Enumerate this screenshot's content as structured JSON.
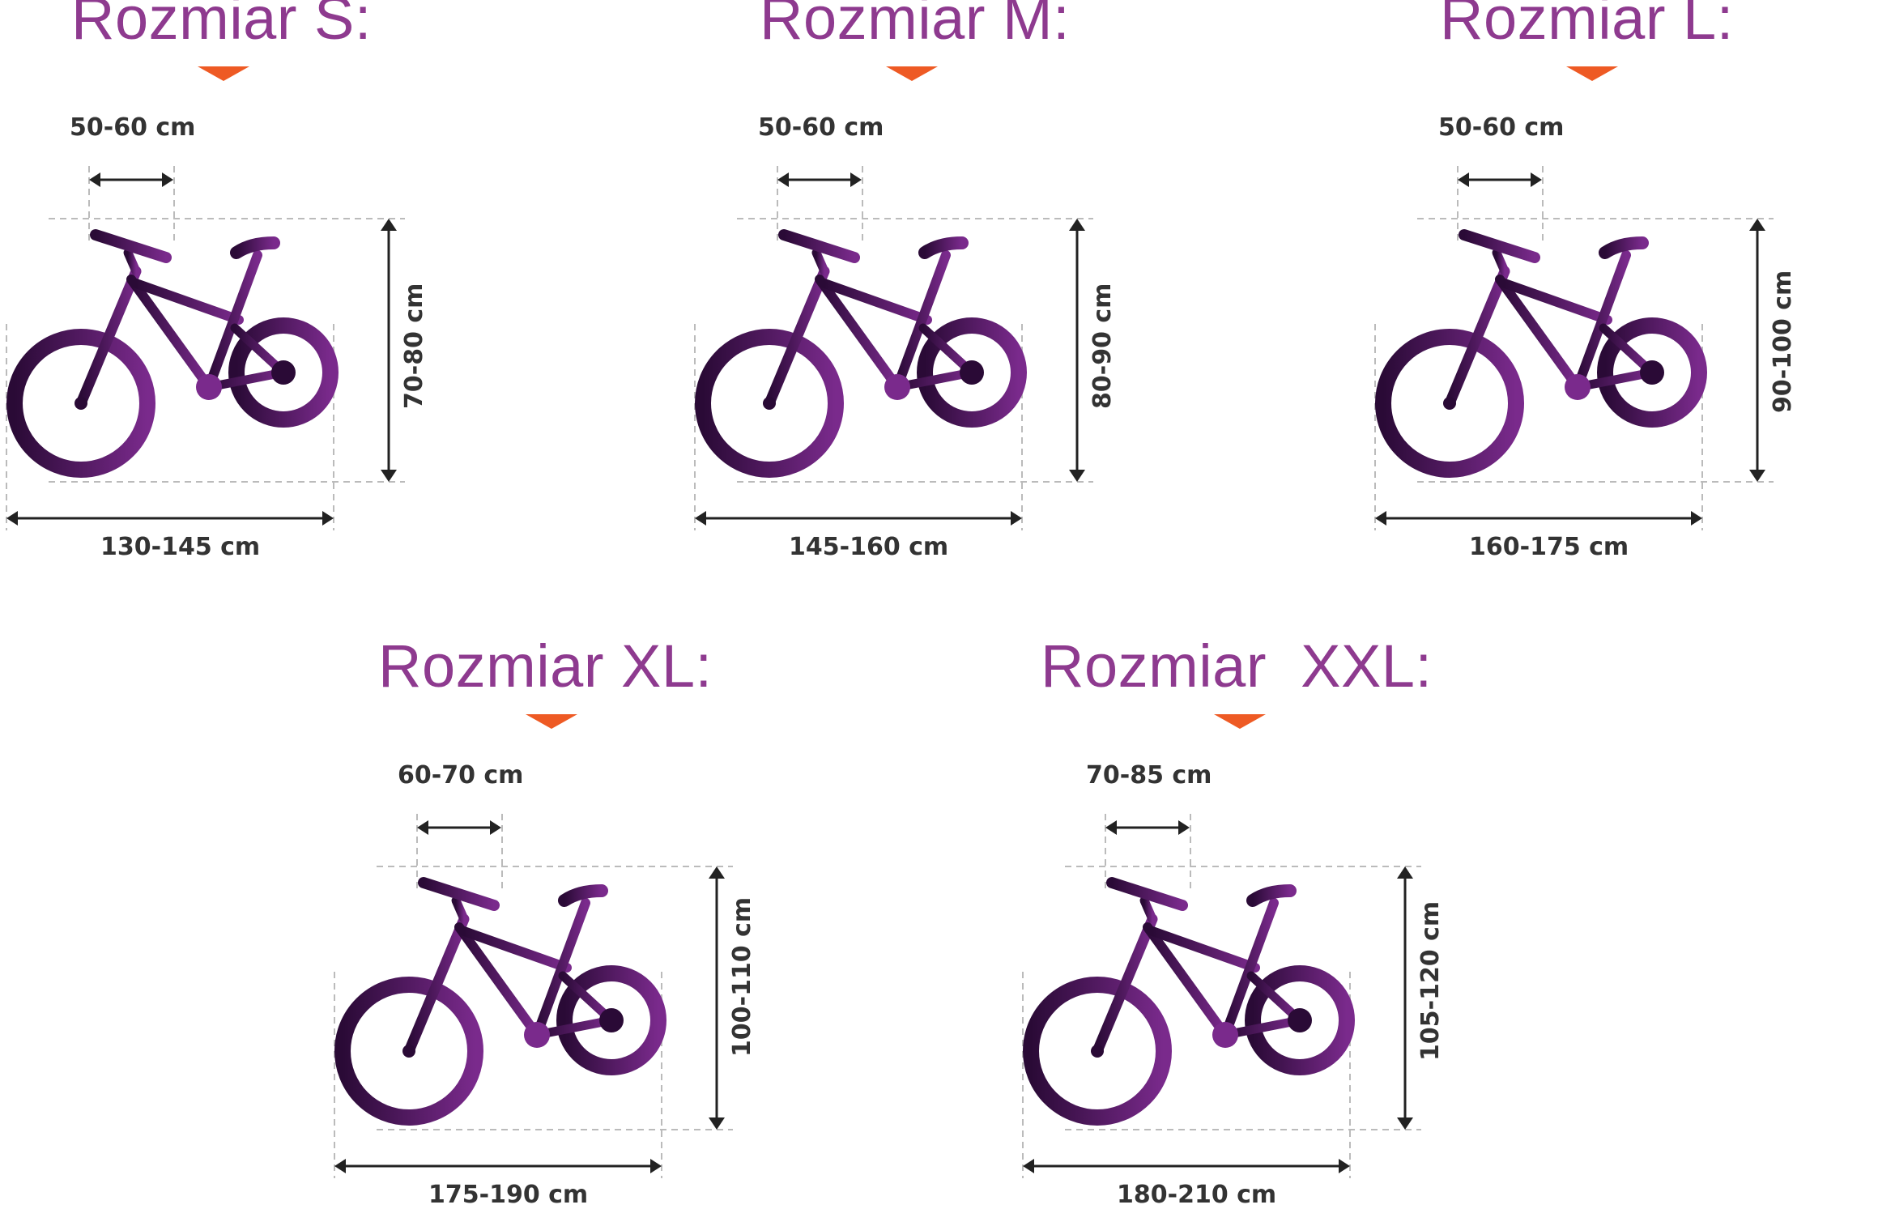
{
  "colors": {
    "title": "#8e3a8f",
    "marker": "#ee5a24",
    "bike_dark": "#2a0a36",
    "bike_light": "#7a2a8c",
    "dim_line": "#222222",
    "guide": "#bbbbbb"
  },
  "sizes": [
    {
      "title": "Rozmiar S:",
      "reach": "50-60 cm",
      "height": "70-80 cm",
      "length": "130-145 cm"
    },
    {
      "title": "Rozmiar M:",
      "reach": "50-60 cm",
      "height": "80-90 cm",
      "length": "145-160 cm"
    },
    {
      "title": "Rozmiar L:",
      "reach": "50-60 cm",
      "height": "90-100 cm",
      "length": "160-175 cm"
    },
    {
      "title": "Rozmiar XL:",
      "reach": "60-70 cm",
      "height": "100-110 cm",
      "length": "175-190 cm"
    },
    {
      "title": "Rozmiar  XXL:",
      "reach": "70-85 cm",
      "height": "105-120 cm",
      "length": "180-210 cm"
    }
  ]
}
